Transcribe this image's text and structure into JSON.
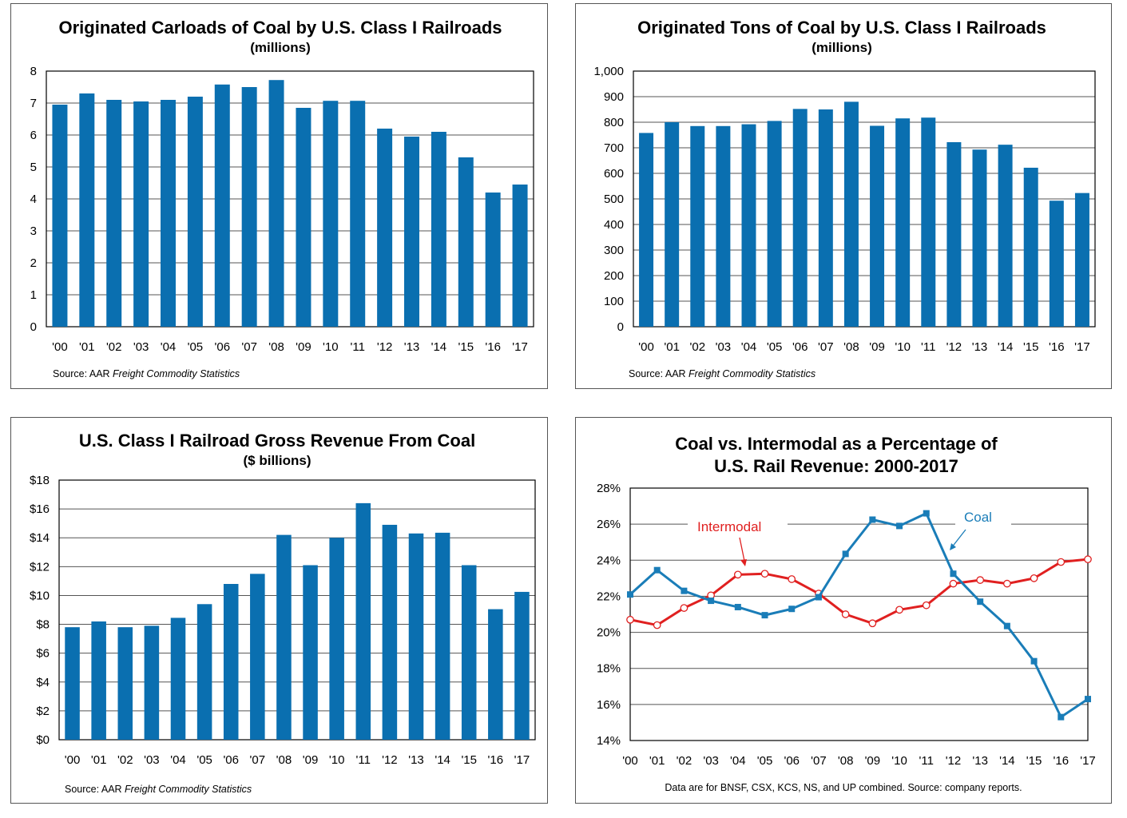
{
  "colors": {
    "bar": "#0a6fb0",
    "coal": "#1a7db8",
    "intermodal": "#e02020",
    "grid": "#555555"
  },
  "chart_data": [
    {
      "type": "bar",
      "title": "Originated Carloads of Coal by U.S. Class I Railroads",
      "subtitle": "(millions)",
      "categories": [
        "'00",
        "'01",
        "'02",
        "'03",
        "'04",
        "'05",
        "'06",
        "'07",
        "'08",
        "'09",
        "'10",
        "'11",
        "'12",
        "'13",
        "'14",
        "'15",
        "'16",
        "'17"
      ],
      "values": [
        6.95,
        7.3,
        7.1,
        7.05,
        7.1,
        7.2,
        7.58,
        7.5,
        7.72,
        6.85,
        7.07,
        7.07,
        6.2,
        5.95,
        6.1,
        5.3,
        4.2,
        4.45
      ],
      "ylim": [
        0,
        8
      ],
      "yticks": [
        "0",
        "1",
        "2",
        "3",
        "4",
        "5",
        "6",
        "7",
        "8"
      ],
      "source_prefix": "Source: AAR ",
      "source_italic": "Freight Commodity Statistics",
      "grid": true
    },
    {
      "type": "bar",
      "title": "Originated Tons of Coal by U.S. Class I Railroads",
      "subtitle": "(millions)",
      "categories": [
        "'00",
        "'01",
        "'02",
        "'03",
        "'04",
        "'05",
        "'06",
        "'07",
        "'08",
        "'09",
        "'10",
        "'11",
        "'12",
        "'13",
        "'14",
        "'15",
        "'16",
        "'17"
      ],
      "values": [
        758,
        800,
        785,
        785,
        792,
        805,
        852,
        850,
        880,
        786,
        815,
        818,
        722,
        693,
        712,
        622,
        493,
        523
      ],
      "ylim": [
        0,
        1000
      ],
      "yticks": [
        "0",
        "100",
        "200",
        "300",
        "400",
        "500",
        "600",
        "700",
        "800",
        "900",
        "1,000"
      ],
      "source_prefix": "Source: AAR ",
      "source_italic": "Freight Commodity Statistics",
      "grid": true
    },
    {
      "type": "bar",
      "title": "U.S. Class I Railroad Gross Revenue From Coal",
      "subtitle": "($ billions)",
      "categories": [
        "'00",
        "'01",
        "'02",
        "'03",
        "'04",
        "'05",
        "'06",
        "'07",
        "'08",
        "'09",
        "'10",
        "'11",
        "'12",
        "'13",
        "'14",
        "'15",
        "'16",
        "'17"
      ],
      "values": [
        7.8,
        8.2,
        7.8,
        7.9,
        8.45,
        9.4,
        10.8,
        11.5,
        14.2,
        12.1,
        14.0,
        16.4,
        14.9,
        14.3,
        14.35,
        12.1,
        9.05,
        10.25
      ],
      "ylim": [
        0,
        18
      ],
      "yticks": [
        "$0",
        "$2",
        "$4",
        "$6",
        "$8",
        "$10",
        "$12",
        "$14",
        "$16",
        "$18"
      ],
      "source_prefix": "Source: AAR ",
      "source_italic": "Freight Commodity Statistics",
      "grid": true
    },
    {
      "type": "line",
      "title": "Coal vs. Intermodal as a Percentage of",
      "title_line2": "U.S. Rail Revenue:  2000-2017",
      "categories": [
        "'00",
        "'01",
        "'02",
        "'03",
        "'04",
        "'05",
        "'06",
        "'07",
        "'08",
        "'09",
        "'10",
        "'11",
        "'12",
        "'13",
        "'14",
        "'15",
        "'16",
        "'17"
      ],
      "series": [
        {
          "name": "Coal",
          "values": [
            22.1,
            23.45,
            22.3,
            21.75,
            21.4,
            20.95,
            21.3,
            21.95,
            24.35,
            26.25,
            25.9,
            26.6,
            23.25,
            21.7,
            20.35,
            18.4,
            15.3,
            16.3
          ]
        },
        {
          "name": "Intermodal",
          "values": [
            20.7,
            20.4,
            21.35,
            22.05,
            23.2,
            23.25,
            22.95,
            22.15,
            21.0,
            20.5,
            21.25,
            21.5,
            22.7,
            22.9,
            22.7,
            23.0,
            23.9,
            24.05
          ]
        }
      ],
      "ylim": [
        14,
        28
      ],
      "yticks": [
        "14%",
        "16%",
        "18%",
        "20%",
        "22%",
        "24%",
        "26%",
        "28%"
      ],
      "source_text": "Data are for BNSF, CSX, KCS, NS, and UP combined.  Source: company reports.",
      "grid": true
    }
  ]
}
